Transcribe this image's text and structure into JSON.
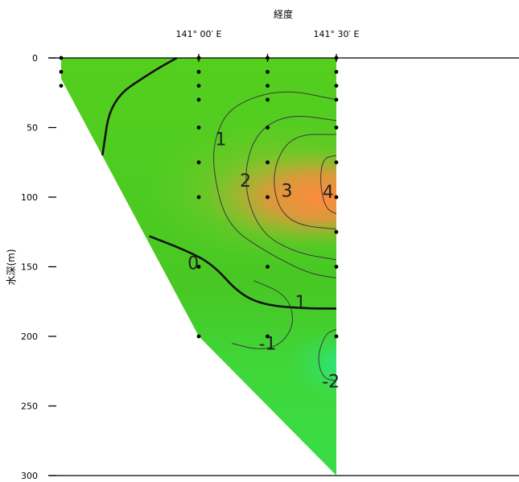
{
  "chart_data": {
    "type": "heatmap",
    "title": "",
    "xlabel": "経度",
    "ylabel": "水深(m)",
    "x_ticks": [
      {
        "value": 141.0,
        "label": "141° 00′ E"
      },
      {
        "value": 141.5,
        "label": "141° 30′ E"
      }
    ],
    "y_ticks": [
      {
        "value": 0,
        "label": "0"
      },
      {
        "value": 50,
        "label": "50"
      },
      {
        "value": 100,
        "label": "100"
      },
      {
        "value": 150,
        "label": "150"
      },
      {
        "value": 200,
        "label": "200"
      },
      {
        "value": 250,
        "label": "250"
      },
      {
        "value": 300,
        "label": "300"
      }
    ],
    "xlim": [
      140.5,
      142.0
    ],
    "ylim": [
      300,
      0
    ],
    "section_bottom": [
      {
        "x": 140.5,
        "depth": 0
      },
      {
        "x": 140.5,
        "depth": 15
      },
      {
        "x": 141.0,
        "depth": 200
      },
      {
        "x": 141.5,
        "depth": 300
      }
    ],
    "stations": [
      {
        "x": 140.5,
        "depths": [
          0,
          10,
          20
        ]
      },
      {
        "x": 141.0,
        "depths": [
          0,
          10,
          20,
          30,
          50,
          75,
          100,
          150,
          200
        ]
      },
      {
        "x": 141.25,
        "depths": [
          0,
          10,
          20,
          30,
          50,
          75,
          100,
          150,
          200
        ]
      },
      {
        "x": 141.5,
        "depths": [
          0,
          10,
          20,
          30,
          50,
          75,
          100,
          125,
          150,
          200
        ]
      }
    ],
    "contours": [
      {
        "level": 0,
        "label": "0",
        "label_at": {
          "x": 140.98,
          "depth": 147
        },
        "bold": true,
        "points": [
          [
            140.92,
            0
          ],
          [
            140.83,
            10
          ],
          [
            140.68,
            30
          ],
          [
            140.65,
            70
          ]
        ]
      },
      {
        "level": 0,
        "label": "0",
        "label_at": {
          "x": 140.98,
          "depth": 147
        },
        "bold": true,
        "points": [
          [
            140.82,
            128
          ],
          [
            140.95,
            138
          ],
          [
            141.05,
            148
          ],
          [
            141.15,
            170
          ],
          [
            141.25,
            178
          ],
          [
            141.4,
            180
          ],
          [
            141.5,
            180
          ]
        ]
      },
      {
        "level": 1,
        "label": "1",
        "label_at": {
          "x": 141.08,
          "depth": 58
        },
        "bold": false,
        "points": [
          [
            141.5,
            30
          ],
          [
            141.3,
            22
          ],
          [
            141.12,
            34
          ],
          [
            141.06,
            55
          ],
          [
            141.05,
            80
          ],
          [
            141.1,
            120
          ],
          [
            141.25,
            140
          ],
          [
            141.4,
            155
          ],
          [
            141.5,
            158
          ]
        ]
      },
      {
        "level": 2,
        "label": "2",
        "label_at": {
          "x": 141.17,
          "depth": 88
        },
        "bold": false,
        "points": [
          [
            141.5,
            45
          ],
          [
            141.32,
            40
          ],
          [
            141.2,
            55
          ],
          [
            141.16,
            90
          ],
          [
            141.22,
            125
          ],
          [
            141.35,
            140
          ],
          [
            141.5,
            145
          ]
        ]
      },
      {
        "level": 3,
        "label": "3",
        "label_at": {
          "x": 141.32,
          "depth": 95
        },
        "bold": false,
        "points": [
          [
            141.5,
            55
          ],
          [
            141.34,
            55
          ],
          [
            141.27,
            78
          ],
          [
            141.28,
            105
          ],
          [
            141.35,
            120
          ],
          [
            141.5,
            123
          ]
        ]
      },
      {
        "level": 4,
        "label": "4",
        "label_at": {
          "x": 141.47,
          "depth": 96
        },
        "bold": false,
        "points": [
          [
            141.5,
            70
          ],
          [
            141.45,
            72
          ],
          [
            141.44,
            90
          ],
          [
            141.46,
            108
          ],
          [
            141.5,
            112
          ]
        ]
      },
      {
        "level": -1,
        "label": "-1",
        "label_at": {
          "x": 141.25,
          "depth": 205
        },
        "bold": false,
        "points": [
          [
            141.2,
            160
          ],
          [
            141.32,
            170
          ],
          [
            141.35,
            190
          ],
          [
            141.3,
            206
          ],
          [
            141.22,
            210
          ],
          [
            141.12,
            205
          ]
        ]
      },
      {
        "level": -1,
        "label": "1",
        "label_at": {
          "x": 141.37,
          "depth": 175
        },
        "bold": false,
        "points": []
      },
      {
        "level": -2,
        "label": "-2",
        "label_at": {
          "x": 141.48,
          "depth": 232
        },
        "bold": false,
        "points": [
          [
            141.5,
            195
          ],
          [
            141.46,
            198
          ],
          [
            141.43,
            215
          ],
          [
            141.45,
            230
          ],
          [
            141.5,
            232
          ]
        ]
      }
    ]
  }
}
